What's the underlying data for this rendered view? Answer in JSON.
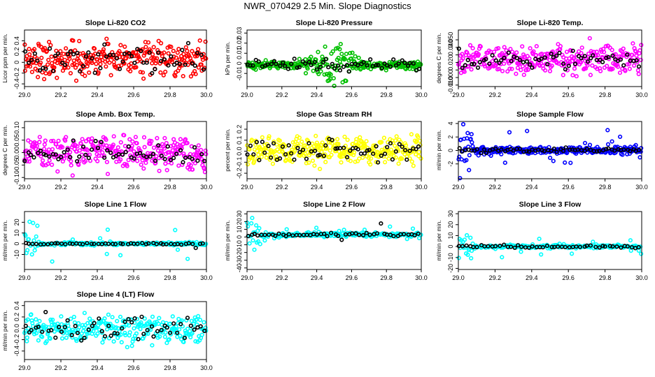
{
  "page_title": "NWR_070429  2.5 Min. Slope Diagnostics",
  "colors": {
    "accent_black": "#000000"
  },
  "chart_data": [
    {
      "type": "scatter",
      "title": "Slope Li-820 CO2",
      "ylabel": "Licor ppm per min.",
      "xlim": [
        29.0,
        30.0
      ],
      "ylim": [
        -0.45,
        0.6
      ],
      "yticks": [
        -0.4,
        -0.2,
        0,
        0.2,
        0.4
      ],
      "ytick_labels": [
        "-0.4",
        "-0.2",
        "0",
        "0.2",
        "0.4"
      ],
      "xticks": [
        29.0,
        29.2,
        29.4,
        29.6,
        29.8,
        30.0
      ],
      "xtick_labels": [
        "29.0",
        "29.2",
        "29.4",
        "29.6",
        "29.8",
        "30.0"
      ],
      "color": "#ff0000",
      "n_colored": 300,
      "n_black": 60,
      "pattern": "noise",
      "center": 0.05,
      "spread": 0.22,
      "black_spread": 0.18
    },
    {
      "type": "scatter",
      "title": "Slope Li-820 Pressure",
      "ylabel": "kPa per min.",
      "xlim": [
        29.0,
        30.0
      ],
      "ylim": [
        -0.023,
        0.033
      ],
      "yticks": [
        -0.01,
        0,
        0.01,
        0.02,
        0.03
      ],
      "ytick_labels": [
        "-0.01",
        "0",
        "0.01",
        "0.02",
        "0.03"
      ],
      "xticks": [
        29.0,
        29.2,
        29.4,
        29.6,
        29.8,
        30.0
      ],
      "xtick_labels": [
        "29.0",
        "29.2",
        "29.4",
        "29.6",
        "29.8",
        "30.0"
      ],
      "color": "#00c000",
      "n_colored": 300,
      "n_black": 60,
      "pattern": "bulge",
      "center": -0.002,
      "spread": 0.003,
      "bulge_x": 29.5,
      "bulge_spread": 0.016,
      "black_spread": 0.004
    },
    {
      "type": "scatter",
      "title": "Slope Li-820 Temp.",
      "ylabel": "degrees C per min.",
      "xlim": [
        29.0,
        30.0
      ],
      "ylim": [
        -0.012,
        0.063
      ],
      "yticks": [
        -0.01,
        0,
        0.01,
        0.02,
        0.03,
        0.04,
        0.05
      ],
      "ytick_labels": [
        "-0.010",
        "0.000",
        "",
        "0.020",
        "",
        "0.040",
        "0.050"
      ],
      "xticks": [
        29.0,
        29.2,
        29.4,
        29.6,
        29.8,
        30.0
      ],
      "xtick_labels": [
        "29.0",
        "29.2",
        "29.4",
        "29.6",
        "29.8",
        "30.0"
      ],
      "color": "#ff00ff",
      "n_colored": 300,
      "n_black": 60,
      "pattern": "noise",
      "center": 0.024,
      "spread": 0.014,
      "black_spread": 0.008
    },
    {
      "type": "scatter",
      "title": "Slope Amb. Box Temp.",
      "ylabel": "degrees C per min.",
      "xlim": [
        29.0,
        30.0
      ],
      "ylim": [
        -0.105,
        0.125
      ],
      "yticks": [
        -0.1,
        -0.05,
        0,
        0.05,
        0.1
      ],
      "ytick_labels": [
        "-0.10",
        "-0.05",
        "0.00",
        "0.05",
        "0.10"
      ],
      "xticks": [
        29.0,
        29.2,
        29.4,
        29.6,
        29.8,
        30.0
      ],
      "xtick_labels": [
        "29.0",
        "29.2",
        "29.4",
        "29.6",
        "29.8",
        "30.0"
      ],
      "color": "#ff00ff",
      "n_colored": 300,
      "n_black": 60,
      "pattern": "noise",
      "center": 0.0,
      "spread": 0.05,
      "black_spread": 0.035
    },
    {
      "type": "scatter",
      "title": "Slope Gas Stream RH",
      "ylabel": "percent per min.",
      "xlim": [
        29.0,
        30.0
      ],
      "ylim": [
        -0.25,
        0.27
      ],
      "yticks": [
        -0.2,
        -0.1,
        0,
        0.1,
        0.2
      ],
      "ytick_labels": [
        "-0.2",
        "-0.1",
        "0.0",
        "0.1",
        "0.2"
      ],
      "xticks": [
        29.0,
        29.2,
        29.4,
        29.6,
        29.8,
        30.0
      ],
      "xtick_labels": [
        "29.0",
        "29.2",
        "29.4",
        "29.6",
        "29.8",
        "30.0"
      ],
      "color": "#ffff00",
      "n_colored": 300,
      "n_black": 60,
      "pattern": "noise",
      "center": 0.01,
      "spread": 0.09,
      "black_spread": 0.08
    },
    {
      "type": "scatter",
      "title": "Slope Sample Flow",
      "ylabel": "ml/min per min.",
      "xlim": [
        29.0,
        30.0
      ],
      "ylim": [
        -4.2,
        4.3
      ],
      "yticks": [
        -2,
        0,
        2,
        4
      ],
      "ytick_labels": [
        "-2",
        "0",
        "2",
        "4"
      ],
      "xticks": [
        29.0,
        29.2,
        29.4,
        29.6,
        29.8,
        30.0
      ],
      "xtick_labels": [
        "29.0",
        "29.2",
        "29.4",
        "29.6",
        "29.8",
        "30.0"
      ],
      "color": "#0000ff",
      "n_colored": 300,
      "n_black": 60,
      "pattern": "spiky",
      "center": 0.0,
      "spread": 0.35,
      "spike_spread": 2.2,
      "black_spread": 0.25
    },
    {
      "type": "scatter",
      "title": "Slope Line 1 Flow",
      "ylabel": "ml/min per min.",
      "xlim": [
        29.0,
        30.0
      ],
      "ylim": [
        -24,
        30
      ],
      "yticks": [
        -10,
        0,
        10,
        20
      ],
      "ytick_labels": [
        "-10",
        "0",
        "10",
        "20"
      ],
      "xticks": [
        29.0,
        29.2,
        29.4,
        29.6,
        29.8,
        30.0
      ],
      "xtick_labels": [
        "29.0",
        "29.2",
        "29.4",
        "29.6",
        "29.8",
        "30.0"
      ],
      "color": "#00ffff",
      "n_colored": 220,
      "n_black": 50,
      "pattern": "spiky",
      "center": 0.0,
      "spread": 1.0,
      "spike_spread": 14,
      "black_spread": 0.6
    },
    {
      "type": "scatter",
      "title": "Slope Line 2 Flow",
      "ylabel": "ml/min per min.",
      "xlim": [
        29.0,
        30.0
      ],
      "ylim": [
        -42,
        33
      ],
      "yticks": [
        -40,
        -30,
        -20,
        -10,
        0,
        10,
        20,
        30
      ],
      "ytick_labels": [
        "-40",
        "-30",
        "-20",
        "-10",
        "0",
        "10",
        "20",
        "30"
      ],
      "xticks": [
        29.0,
        29.2,
        29.4,
        29.6,
        29.8,
        30.0
      ],
      "xtick_labels": [
        "29.0",
        "29.2",
        "29.4",
        "29.6",
        "29.8",
        "30.0"
      ],
      "color": "#00ffff",
      "n_colored": 220,
      "n_black": 50,
      "pattern": "spiky",
      "center": 3.0,
      "spread": 2.0,
      "spike_spread": 15,
      "black_spread": 1.5
    },
    {
      "type": "scatter",
      "title": "Slope Line 3 Flow",
      "ylabel": "ml/min per min.",
      "xlim": [
        29.0,
        30.0
      ],
      "ylim": [
        -21,
        32
      ],
      "yticks": [
        -20,
        -10,
        0,
        10,
        20,
        30
      ],
      "ytick_labels": [
        "-20",
        "-10",
        "0",
        "10",
        "20",
        "30"
      ],
      "xticks": [
        29.0,
        29.2,
        29.4,
        29.6,
        29.8,
        30.0
      ],
      "xtick_labels": [
        "29.0",
        "29.2",
        "29.4",
        "29.6",
        "29.8",
        "30.0"
      ],
      "color": "#00ffff",
      "n_colored": 220,
      "n_black": 50,
      "pattern": "spiky",
      "center": 0.0,
      "spread": 1.2,
      "spike_spread": 10,
      "black_spread": 0.8
    },
    {
      "type": "scatter",
      "title": "Slope Line 4 (LT) Flow",
      "ylabel": "ml/min per min.",
      "xlim": [
        29.0,
        30.0
      ],
      "ylim": [
        -0.55,
        0.47
      ],
      "yticks": [
        -0.4,
        -0.2,
        0,
        0.2,
        0.4
      ],
      "ytick_labels": [
        "-0.4",
        "-0.2",
        "0.0",
        "0.2",
        "0.4"
      ],
      "xticks": [
        29.0,
        29.2,
        29.4,
        29.6,
        29.8,
        30.0
      ],
      "xtick_labels": [
        "29.0",
        "29.2",
        "29.4",
        "29.6",
        "29.8",
        "30.0"
      ],
      "color": "#00ffff",
      "n_colored": 280,
      "n_black": 55,
      "pattern": "noise",
      "center": 0.0,
      "spread": 0.17,
      "black_spread": 0.16
    }
  ]
}
